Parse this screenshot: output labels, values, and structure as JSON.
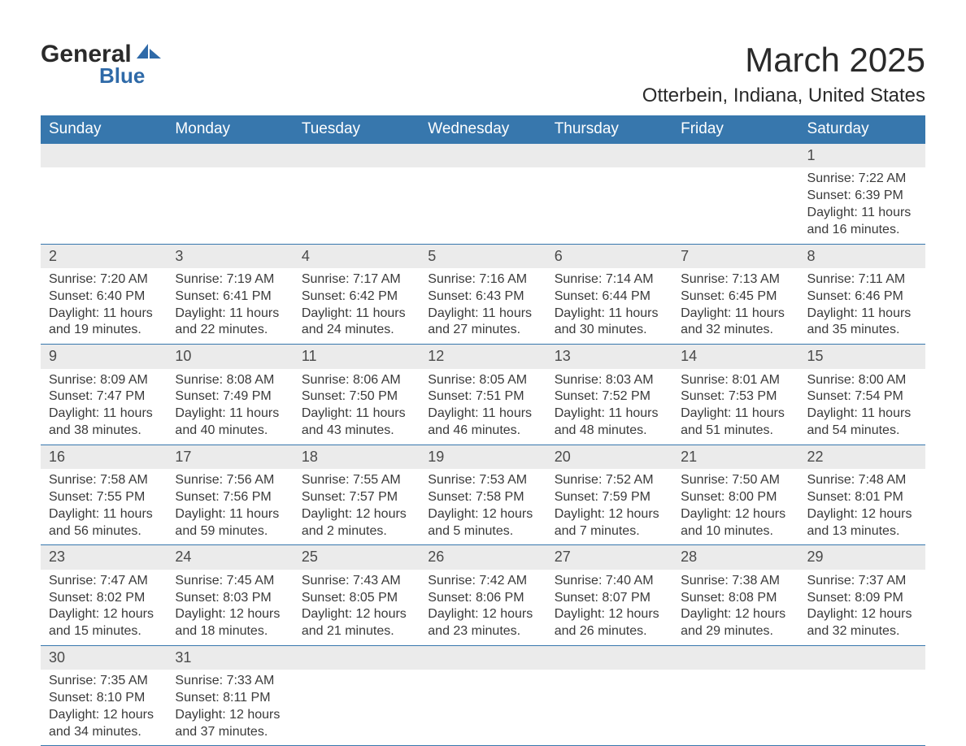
{
  "logo": {
    "word1": "General",
    "word2": "Blue",
    "accent_color": "#2f6aa8"
  },
  "header": {
    "month_year": "March 2025",
    "location": "Otterbein, Indiana, United States"
  },
  "colors": {
    "header_bg": "#3777ad",
    "header_fg": "#ffffff",
    "daynum_bg": "#ebebeb",
    "text": "#3a3a3a",
    "rule": "#3777ad"
  },
  "weekdays": [
    "Sunday",
    "Monday",
    "Tuesday",
    "Wednesday",
    "Thursday",
    "Friday",
    "Saturday"
  ],
  "first_weekday_index": 6,
  "days": [
    {
      "n": 1,
      "sunrise": "7:22 AM",
      "sunset": "6:39 PM",
      "daylight": "11 hours and 16 minutes."
    },
    {
      "n": 2,
      "sunrise": "7:20 AM",
      "sunset": "6:40 PM",
      "daylight": "11 hours and 19 minutes."
    },
    {
      "n": 3,
      "sunrise": "7:19 AM",
      "sunset": "6:41 PM",
      "daylight": "11 hours and 22 minutes."
    },
    {
      "n": 4,
      "sunrise": "7:17 AM",
      "sunset": "6:42 PM",
      "daylight": "11 hours and 24 minutes."
    },
    {
      "n": 5,
      "sunrise": "7:16 AM",
      "sunset": "6:43 PM",
      "daylight": "11 hours and 27 minutes."
    },
    {
      "n": 6,
      "sunrise": "7:14 AM",
      "sunset": "6:44 PM",
      "daylight": "11 hours and 30 minutes."
    },
    {
      "n": 7,
      "sunrise": "7:13 AM",
      "sunset": "6:45 PM",
      "daylight": "11 hours and 32 minutes."
    },
    {
      "n": 8,
      "sunrise": "7:11 AM",
      "sunset": "6:46 PM",
      "daylight": "11 hours and 35 minutes."
    },
    {
      "n": 9,
      "sunrise": "8:09 AM",
      "sunset": "7:47 PM",
      "daylight": "11 hours and 38 minutes."
    },
    {
      "n": 10,
      "sunrise": "8:08 AM",
      "sunset": "7:49 PM",
      "daylight": "11 hours and 40 minutes."
    },
    {
      "n": 11,
      "sunrise": "8:06 AM",
      "sunset": "7:50 PM",
      "daylight": "11 hours and 43 minutes."
    },
    {
      "n": 12,
      "sunrise": "8:05 AM",
      "sunset": "7:51 PM",
      "daylight": "11 hours and 46 minutes."
    },
    {
      "n": 13,
      "sunrise": "8:03 AM",
      "sunset": "7:52 PM",
      "daylight": "11 hours and 48 minutes."
    },
    {
      "n": 14,
      "sunrise": "8:01 AM",
      "sunset": "7:53 PM",
      "daylight": "11 hours and 51 minutes."
    },
    {
      "n": 15,
      "sunrise": "8:00 AM",
      "sunset": "7:54 PM",
      "daylight": "11 hours and 54 minutes."
    },
    {
      "n": 16,
      "sunrise": "7:58 AM",
      "sunset": "7:55 PM",
      "daylight": "11 hours and 56 minutes."
    },
    {
      "n": 17,
      "sunrise": "7:56 AM",
      "sunset": "7:56 PM",
      "daylight": "11 hours and 59 minutes."
    },
    {
      "n": 18,
      "sunrise": "7:55 AM",
      "sunset": "7:57 PM",
      "daylight": "12 hours and 2 minutes."
    },
    {
      "n": 19,
      "sunrise": "7:53 AM",
      "sunset": "7:58 PM",
      "daylight": "12 hours and 5 minutes."
    },
    {
      "n": 20,
      "sunrise": "7:52 AM",
      "sunset": "7:59 PM",
      "daylight": "12 hours and 7 minutes."
    },
    {
      "n": 21,
      "sunrise": "7:50 AM",
      "sunset": "8:00 PM",
      "daylight": "12 hours and 10 minutes."
    },
    {
      "n": 22,
      "sunrise": "7:48 AM",
      "sunset": "8:01 PM",
      "daylight": "12 hours and 13 minutes."
    },
    {
      "n": 23,
      "sunrise": "7:47 AM",
      "sunset": "8:02 PM",
      "daylight": "12 hours and 15 minutes."
    },
    {
      "n": 24,
      "sunrise": "7:45 AM",
      "sunset": "8:03 PM",
      "daylight": "12 hours and 18 minutes."
    },
    {
      "n": 25,
      "sunrise": "7:43 AM",
      "sunset": "8:05 PM",
      "daylight": "12 hours and 21 minutes."
    },
    {
      "n": 26,
      "sunrise": "7:42 AM",
      "sunset": "8:06 PM",
      "daylight": "12 hours and 23 minutes."
    },
    {
      "n": 27,
      "sunrise": "7:40 AM",
      "sunset": "8:07 PM",
      "daylight": "12 hours and 26 minutes."
    },
    {
      "n": 28,
      "sunrise": "7:38 AM",
      "sunset": "8:08 PM",
      "daylight": "12 hours and 29 minutes."
    },
    {
      "n": 29,
      "sunrise": "7:37 AM",
      "sunset": "8:09 PM",
      "daylight": "12 hours and 32 minutes."
    },
    {
      "n": 30,
      "sunrise": "7:35 AM",
      "sunset": "8:10 PM",
      "daylight": "12 hours and 34 minutes."
    },
    {
      "n": 31,
      "sunrise": "7:33 AM",
      "sunset": "8:11 PM",
      "daylight": "12 hours and 37 minutes."
    }
  ],
  "labels": {
    "sunrise": "Sunrise: ",
    "sunset": "Sunset: ",
    "daylight": "Daylight: "
  }
}
